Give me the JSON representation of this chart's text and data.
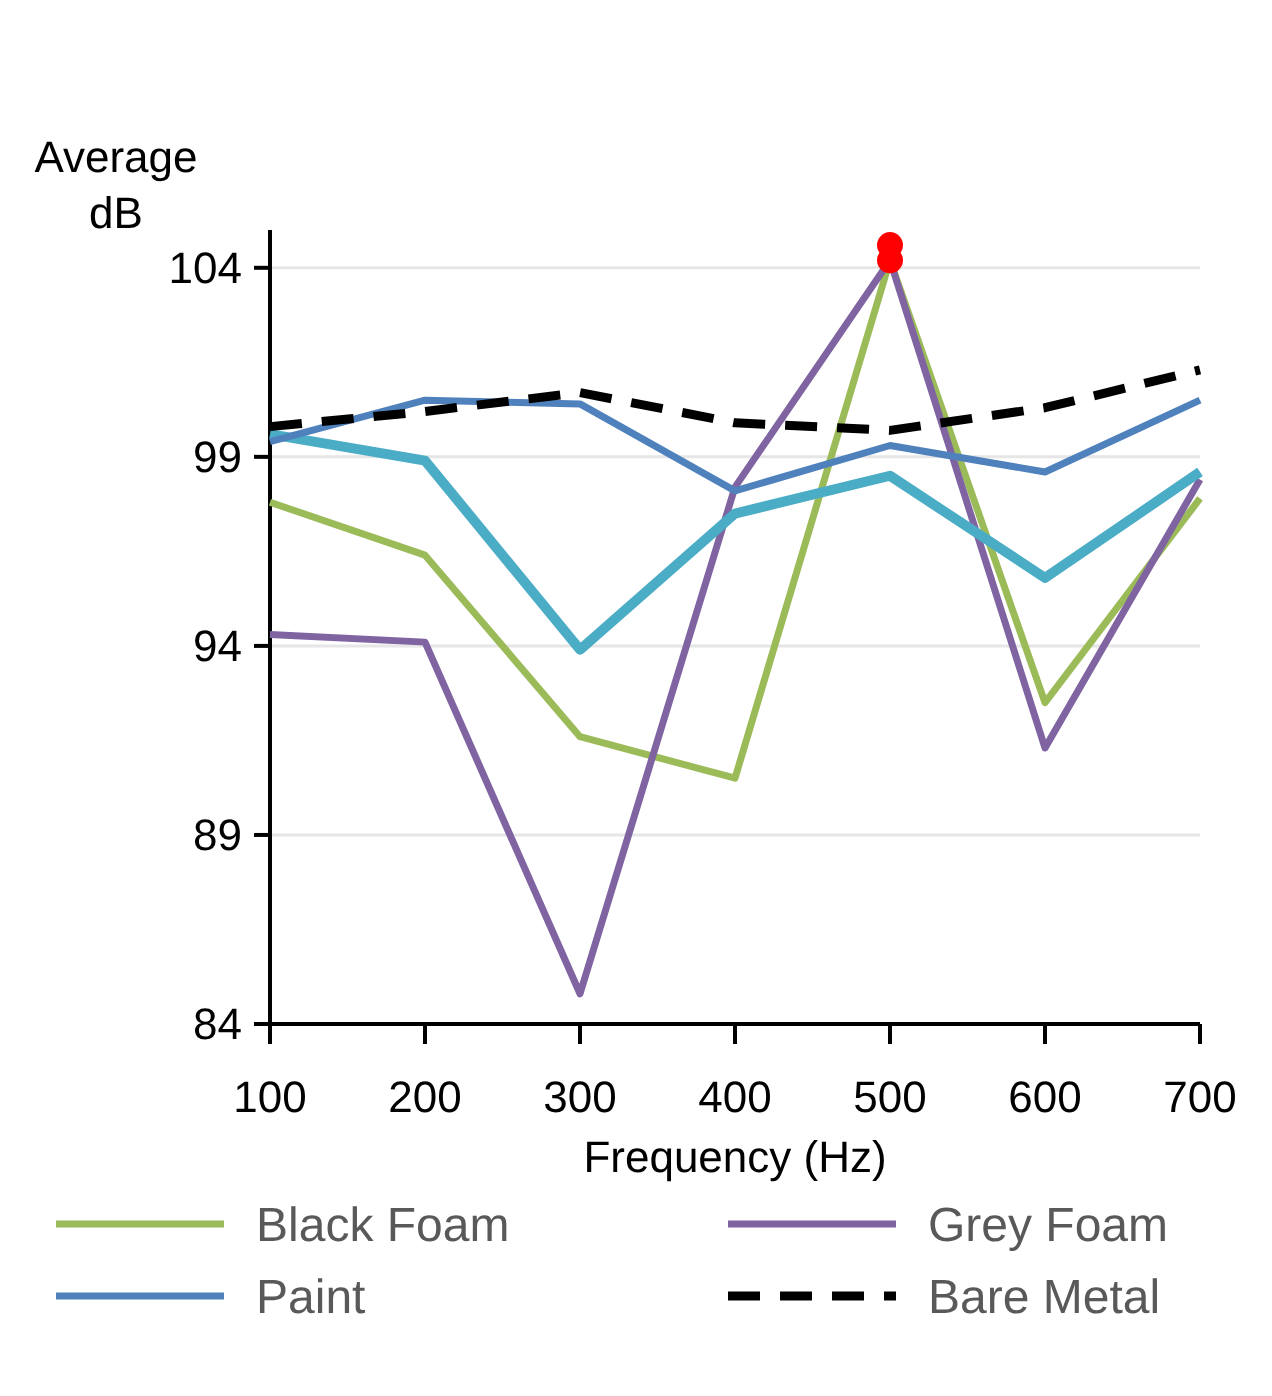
{
  "chart_data": {
    "type": "line",
    "xlabel": "Frequency (Hz)",
    "ylabel": "Average dB",
    "x": [
      100,
      200,
      300,
      400,
      500,
      600,
      700
    ],
    "xlim": [
      100,
      700
    ],
    "xticks": [
      100,
      200,
      300,
      400,
      500,
      600,
      700
    ],
    "ylim": [
      84,
      105
    ],
    "yticks": [
      84,
      89,
      94,
      99,
      104
    ],
    "grid": "y",
    "legend": "bottom",
    "series": [
      {
        "name": "Black Foam",
        "color": "#9bbb59",
        "values": [
          97.8,
          96.4,
          91.6,
          90.5,
          104.2,
          92.5,
          97.9
        ]
      },
      {
        "name": "Grey Foam",
        "color": "#8064a2",
        "values": [
          94.3,
          94.1,
          84.8,
          98.2,
          104.2,
          91.3,
          98.4
        ]
      },
      {
        "color": "#4bacc6",
        "values": [
          99.6,
          98.9,
          93.9,
          97.5,
          98.5,
          95.8,
          98.6
        ]
      },
      {
        "name": "Paint",
        "color": "#4f81bd",
        "values": [
          99.4,
          100.5,
          100.4,
          98.1,
          99.3,
          98.6,
          100.5
        ]
      },
      {
        "name": "Bare Metal",
        "color": "#000000",
        "line_style": "dashed",
        "values": [
          99.8,
          100.2,
          100.7,
          99.9,
          99.7,
          100.3,
          101.3
        ]
      },
      {
        "type": "scatter",
        "color": "#ff0000",
        "marker": "circle",
        "x": [
          500,
          500
        ],
        "values": [
          104.6,
          104.2
        ]
      }
    ]
  }
}
